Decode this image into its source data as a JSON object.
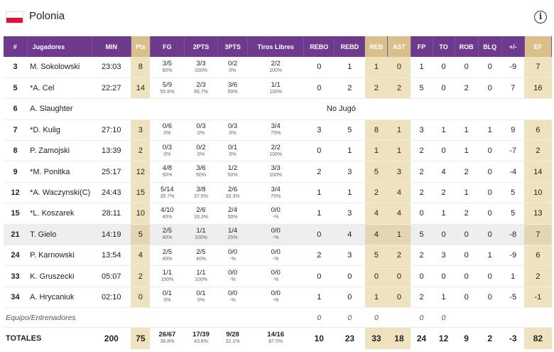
{
  "team": {
    "name": "Polonia"
  },
  "colors": {
    "header_purple": "#6d3a8d",
    "highlight_gold": "#d9c08a",
    "highlight_cell": "#efe2bf",
    "flag_red": "#dc143c"
  },
  "icons": {
    "info": "info-circle-icon",
    "flag": "poland-flag-icon"
  },
  "info_glyph": "i",
  "columns": [
    "#",
    "Jugadores",
    "MIN",
    "Pts",
    "FG",
    "2PTS",
    "3PTS",
    "Tiros Libres",
    "REBO",
    "REBD",
    "REB",
    "AST",
    "FP",
    "TO",
    "ROB",
    "BLQ",
    "+/-",
    "EF"
  ],
  "players": [
    {
      "num": "3",
      "name": "M. Sokolowski",
      "min": "23:03",
      "pts": "8",
      "fg": "3/5",
      "fg_pct": "60%",
      "p2": "3/3",
      "p2_pct": "100%",
      "p3": "0/2",
      "p3_pct": "0%",
      "ft": "2/2",
      "ft_pct": "100%",
      "rebo": "0",
      "rebd": "1",
      "reb": "1",
      "ast": "0",
      "fp": "1",
      "to": "0",
      "rob": "0",
      "blq": "0",
      "pm": "-9",
      "ef": "7"
    },
    {
      "num": "5",
      "name": "*A. Cel",
      "min": "22:27",
      "pts": "14",
      "fg": "5/9",
      "fg_pct": "55.6%",
      "p2": "2/3",
      "p2_pct": "66.7%",
      "p3": "3/6",
      "p3_pct": "50%",
      "ft": "1/1",
      "ft_pct": "100%",
      "rebo": "0",
      "rebd": "2",
      "reb": "2",
      "ast": "2",
      "fp": "5",
      "to": "0",
      "rob": "2",
      "blq": "0",
      "pm": "7",
      "ef": "16"
    },
    {
      "num": "6",
      "name": "A. Slaughter",
      "dnp": "No Jugó"
    },
    {
      "num": "7",
      "name": "*D. Kulig",
      "min": "27:10",
      "pts": "3",
      "fg": "0/6",
      "fg_pct": "0%",
      "p2": "0/3",
      "p2_pct": "0%",
      "p3": "0/3",
      "p3_pct": "0%",
      "ft": "3/4",
      "ft_pct": "75%",
      "rebo": "3",
      "rebd": "5",
      "reb": "8",
      "ast": "1",
      "fp": "3",
      "to": "1",
      "rob": "1",
      "blq": "1",
      "pm": "9",
      "ef": "6"
    },
    {
      "num": "8",
      "name": "P. Zamojski",
      "min": "13:39",
      "pts": "2",
      "fg": "0/3",
      "fg_pct": "0%",
      "p2": "0/2",
      "p2_pct": "0%",
      "p3": "0/1",
      "p3_pct": "0%",
      "ft": "2/2",
      "ft_pct": "100%",
      "rebo": "0",
      "rebd": "1",
      "reb": "1",
      "ast": "1",
      "fp": "2",
      "to": "0",
      "rob": "1",
      "blq": "0",
      "pm": "-7",
      "ef": "2"
    },
    {
      "num": "9",
      "name": "*M. Ponitka",
      "min": "25:17",
      "pts": "12",
      "fg": "4/8",
      "fg_pct": "50%",
      "p2": "3/6",
      "p2_pct": "50%",
      "p3": "1/2",
      "p3_pct": "50%",
      "ft": "3/3",
      "ft_pct": "100%",
      "rebo": "2",
      "rebd": "3",
      "reb": "5",
      "ast": "3",
      "fp": "2",
      "to": "4",
      "rob": "2",
      "blq": "0",
      "pm": "-4",
      "ef": "14"
    },
    {
      "num": "12",
      "name": "*A. Waczynski(C)",
      "min": "24:43",
      "pts": "15",
      "fg": "5/14",
      "fg_pct": "35.7%",
      "p2": "3/8",
      "p2_pct": "37.5%",
      "p3": "2/6",
      "p3_pct": "33.3%",
      "ft": "3/4",
      "ft_pct": "75%",
      "rebo": "1",
      "rebd": "1",
      "reb": "2",
      "ast": "4",
      "fp": "2",
      "to": "2",
      "rob": "1",
      "blq": "0",
      "pm": "5",
      "ef": "10"
    },
    {
      "num": "15",
      "name": "*L. Koszarek",
      "min": "28:11",
      "pts": "10",
      "fg": "4/10",
      "fg_pct": "40%",
      "p2": "2/6",
      "p2_pct": "33.3%",
      "p3": "2/4",
      "p3_pct": "50%",
      "ft": "0/0",
      "ft_pct": "-%",
      "rebo": "1",
      "rebd": "3",
      "reb": "4",
      "ast": "4",
      "fp": "0",
      "to": "1",
      "rob": "2",
      "blq": "0",
      "pm": "5",
      "ef": "13"
    },
    {
      "num": "21",
      "name": "T. Gielo",
      "min": "14:19",
      "pts": "5",
      "fg": "2/5",
      "fg_pct": "40%",
      "p2": "1/1",
      "p2_pct": "100%",
      "p3": "1/4",
      "p3_pct": "25%",
      "ft": "0/0",
      "ft_pct": "-%",
      "rebo": "0",
      "rebd": "4",
      "reb": "4",
      "ast": "1",
      "fp": "5",
      "to": "0",
      "rob": "0",
      "blq": "0",
      "pm": "-8",
      "ef": "7"
    },
    {
      "num": "24",
      "name": "P. Karnowski",
      "min": "13:54",
      "pts": "4",
      "fg": "2/5",
      "fg_pct": "40%",
      "p2": "2/5",
      "p2_pct": "40%",
      "p3": "0/0",
      "p3_pct": "-%",
      "ft": "0/0",
      "ft_pct": "-%",
      "rebo": "2",
      "rebd": "3",
      "reb": "5",
      "ast": "2",
      "fp": "2",
      "to": "3",
      "rob": "0",
      "blq": "1",
      "pm": "-9",
      "ef": "6"
    },
    {
      "num": "33",
      "name": "K. Gruszecki",
      "min": "05:07",
      "pts": "2",
      "fg": "1/1",
      "fg_pct": "100%",
      "p2": "1/1",
      "p2_pct": "100%",
      "p3": "0/0",
      "p3_pct": "-%",
      "ft": "0/0",
      "ft_pct": "-%",
      "rebo": "0",
      "rebd": "0",
      "reb": "0",
      "ast": "0",
      "fp": "0",
      "to": "0",
      "rob": "0",
      "blq": "0",
      "pm": "1",
      "ef": "2"
    },
    {
      "num": "34",
      "name": "A. Hrycaniuk",
      "min": "02:10",
      "pts": "0",
      "fg": "0/1",
      "fg_pct": "0%",
      "p2": "0/1",
      "p2_pct": "0%",
      "p3": "0/0",
      "p3_pct": "-%",
      "ft": "0/0",
      "ft_pct": "-%",
      "rebo": "1",
      "rebd": "0",
      "reb": "1",
      "ast": "0",
      "fp": "2",
      "to": "1",
      "rob": "0",
      "blq": "0",
      "pm": "-5",
      "ef": "-1"
    }
  ],
  "team_row": {
    "label": "Equipo/Entrenadores",
    "rebo": "0",
    "rebd": "0",
    "reb": "0",
    "fp": "0",
    "to": "0"
  },
  "totals": {
    "label": "TOTALES",
    "min": "200",
    "pts": "75",
    "fg": "26/67",
    "fg_pct": "38.8%",
    "p2": "17/39",
    "p2_pct": "43.6%",
    "p3": "9/28",
    "p3_pct": "32.1%",
    "ft": "14/16",
    "ft_pct": "87.5%",
    "rebo": "10",
    "rebd": "23",
    "reb": "33",
    "ast": "18",
    "fp": "24",
    "to": "12",
    "rob": "9",
    "blq": "2",
    "pm": "-3",
    "ef": "82"
  }
}
